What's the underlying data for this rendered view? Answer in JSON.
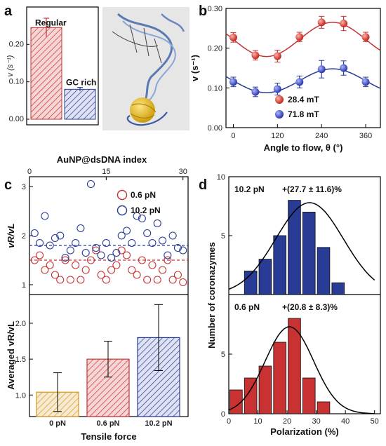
{
  "colors": {
    "red": "#c83232",
    "blue": "#283c96",
    "orange": "#d2961e",
    "black": "#000000"
  },
  "panels": {
    "a": "a",
    "b": "b",
    "c": "c",
    "d": "d"
  },
  "chart_data": [
    {
      "id": "a",
      "type": "bar",
      "categories": [
        "Regular",
        "GC rich"
      ],
      "values": [
        0.245,
        0.08
      ],
      "errors": [
        0.025,
        0.005
      ],
      "ylabel": "v (s⁻¹)",
      "yticks": [
        "0.00",
        "0.10",
        "0.20"
      ],
      "ylim": [
        0,
        0.3
      ],
      "bar_labels": [
        "Regular",
        "GC rich"
      ]
    },
    {
      "id": "b",
      "type": "scatter",
      "xlabel": "Angle to flow, θ (°)",
      "ylabel": "v (s⁻¹)",
      "xlim": [
        -20,
        400
      ],
      "ylim": [
        0,
        0.3
      ],
      "xticks": [
        0,
        120,
        240,
        360
      ],
      "yticks": [
        "0.00",
        "0.10",
        "0.20",
        "0.30"
      ],
      "x": [
        0,
        60,
        120,
        180,
        240,
        300,
        360
      ],
      "series": [
        {
          "name": "28.4 mT",
          "color": "#c83232",
          "values": [
            0.227,
            0.182,
            0.18,
            0.228,
            0.265,
            0.262,
            0.228
          ],
          "errors": [
            0.012,
            0.012,
            0.015,
            0.012,
            0.015,
            0.018,
            0.012
          ],
          "fit": {
            "mean": 0.222,
            "amp": 0.043,
            "phase": 270
          }
        },
        {
          "name": "71.8 mT",
          "color": "#283c96",
          "values": [
            0.115,
            0.09,
            0.097,
            0.115,
            0.147,
            0.15,
            0.115
          ],
          "errors": [
            0.012,
            0.012,
            0.015,
            0.015,
            0.022,
            0.018,
            0.012
          ],
          "fit": {
            "mean": 0.118,
            "amp": 0.03,
            "phase": 270
          }
        }
      ]
    },
    {
      "id": "c_top",
      "type": "scatter",
      "xlabel": "AuNP@dsDNA index",
      "ylabel": "vR/vL",
      "xlim": [
        0,
        31
      ],
      "ylim": [
        0.8,
        3.2
      ],
      "xticks": [
        0,
        15,
        30
      ],
      "yticks": [
        1,
        2,
        3
      ],
      "series": [
        {
          "name": "0.6 pN",
          "color": "#c83232",
          "mean": 1.5,
          "x": [
            1,
            2,
            3,
            4,
            5,
            6,
            7,
            8,
            9,
            10,
            11,
            12,
            13,
            14,
            15,
            16,
            17,
            18,
            19,
            20,
            21,
            22,
            23,
            24,
            25,
            26,
            27,
            28,
            29,
            30
          ],
          "values": [
            1.5,
            1.6,
            1.3,
            1.4,
            1.2,
            1.1,
            1.5,
            1.1,
            1.4,
            1.1,
            1.3,
            1.5,
            1.7,
            1.2,
            1.1,
            1.3,
            1.4,
            1.7,
            1.6,
            1.3,
            1.2,
            1.5,
            1.1,
            1.4,
            1.1,
            1.3,
            1.5,
            1.1,
            1.2,
            1.05
          ]
        },
        {
          "name": "10.2 pN",
          "color": "#283c96",
          "mean": 1.8,
          "x": [
            1,
            2,
            3,
            4,
            5,
            6,
            7,
            8,
            9,
            10,
            11,
            12,
            13,
            14,
            15,
            16,
            17,
            18,
            19,
            20,
            21,
            22,
            23,
            24,
            25,
            26,
            27,
            28,
            29,
            30
          ],
          "values": [
            2.05,
            1.85,
            2.4,
            1.8,
            1.95,
            2.0,
            1.55,
            1.7,
            1.85,
            2.15,
            1.65,
            3.05,
            1.75,
            1.6,
            1.85,
            1.55,
            1.65,
            2.0,
            2.1,
            1.85,
            2.4,
            2.35,
            2.05,
            1.85,
            2.25,
            1.9,
            1.6,
            2.0,
            1.75,
            1.7
          ]
        }
      ]
    },
    {
      "id": "c_bottom",
      "type": "bar",
      "xlabel": "Tensile force",
      "ylabel": "Averaged vR/vL",
      "categories": [
        "0 pN",
        "0.6 pN",
        "10.2 pN"
      ],
      "values": [
        1.04,
        1.5,
        1.8
      ],
      "errors": [
        0.27,
        0.25,
        0.46
      ],
      "colors": [
        "#d2961e",
        "#c83232",
        "#283c96"
      ],
      "ylim": [
        0.7,
        2.4
      ],
      "yticks": [
        "1.0",
        "1.5",
        "2.0"
      ]
    },
    {
      "id": "d_top",
      "type": "bar",
      "label": "10.2 pN",
      "annotation": "+(27.7 ± 11.6)%",
      "bin_centers": [
        2.5,
        7.5,
        12.5,
        17.5,
        22.5,
        27.5,
        32.5,
        37.5,
        42.5,
        47.5
      ],
      "values": [
        0,
        2,
        3,
        5,
        8,
        7,
        4,
        1,
        0,
        0
      ],
      "bin_edges": [
        0,
        5,
        10,
        15,
        20,
        25,
        30,
        35,
        40,
        45,
        50
      ],
      "fit": {
        "mean": 27.7,
        "sd": 11.6,
        "peak": 7.8
      },
      "ylim": [
        0,
        10
      ],
      "yticks": [
        5,
        10
      ]
    },
    {
      "id": "d_bottom",
      "type": "bar",
      "label": "0.6 pN",
      "annotation": "+(20.8 ± 8.3)%",
      "xlabel": "Polarization (%)",
      "ylabel": "Number of coronazymes",
      "values": [
        2,
        3,
        4,
        6,
        8,
        3,
        1
      ],
      "bin_edges": [
        0,
        5,
        10,
        15,
        20,
        25,
        30,
        35
      ],
      "fit": {
        "mean": 20.8,
        "sd": 8.3,
        "peak": 7.3
      },
      "ylim": [
        0,
        10
      ],
      "xlim": [
        0,
        52
      ],
      "xticks": [
        0,
        10,
        20,
        30,
        40,
        50
      ],
      "yticks": [
        0,
        5
      ]
    }
  ]
}
